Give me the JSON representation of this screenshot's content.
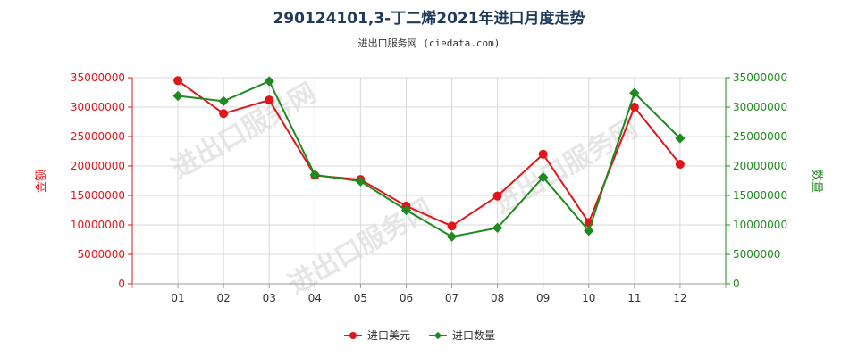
{
  "chart_data": {
    "type": "line",
    "title": "290124101,3-丁二烯2021年进口月度走势",
    "subtitle": "进出口服务网 (ciedata.com)",
    "watermark": "进出口服务网",
    "categories": [
      "01",
      "02",
      "03",
      "04",
      "05",
      "06",
      "07",
      "08",
      "09",
      "10",
      "11",
      "12"
    ],
    "y_left": {
      "label": "金额",
      "range": [
        0,
        35000000
      ],
      "ticks": [
        "0",
        "5000000",
        "10000000",
        "15000000",
        "20000000",
        "25000000",
        "30000000",
        "35000000"
      ],
      "color": "#e0161b"
    },
    "y_right": {
      "label": "数量",
      "range": [
        0,
        35000000
      ],
      "ticks": [
        "0",
        "5000000",
        "10000000",
        "15000000",
        "20000000",
        "25000000",
        "30000000",
        "35000000"
      ],
      "color": "#1f8a1f"
    },
    "series": [
      {
        "name": "进口美元",
        "axis": "left",
        "color": "#e0161b",
        "values": [
          34500000,
          28900000,
          31200000,
          18400000,
          17700000,
          13200000,
          9800000,
          14900000,
          22000000,
          10400000,
          30000000,
          20300000
        ]
      },
      {
        "name": "进口数量",
        "axis": "right",
        "color": "#1f8a1f",
        "values": [
          31900000,
          31000000,
          34400000,
          18500000,
          17400000,
          12500000,
          8000000,
          9500000,
          18100000,
          9000000,
          32400000,
          24700000
        ]
      }
    ],
    "grid": true,
    "legend_position": "bottom-center"
  }
}
